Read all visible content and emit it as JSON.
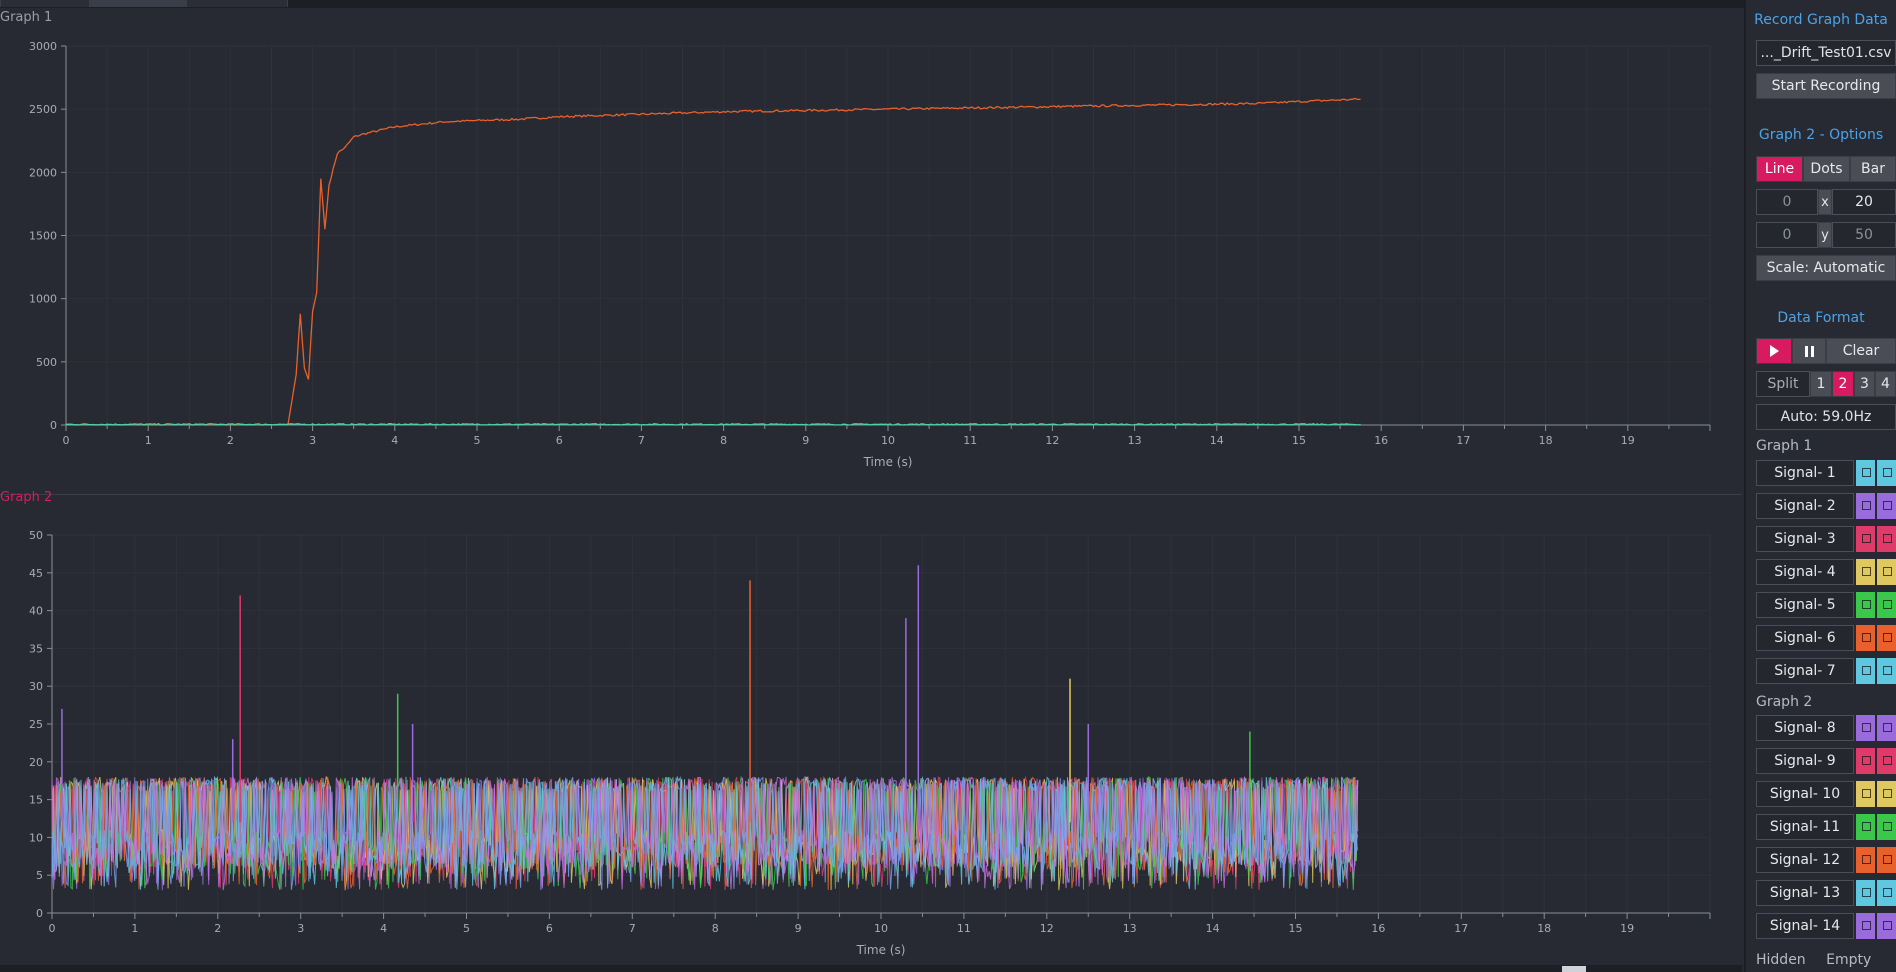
{
  "graph1": {
    "label": "Graph 1",
    "xlabel": "Time (s)",
    "ylabel": ""
  },
  "graph2": {
    "label": "Graph 2",
    "xlabel": "Time (s)",
    "ylabel": ""
  },
  "chart_data": [
    {
      "type": "line",
      "title": "Graph 1",
      "xlabel": "Time (s)",
      "ylabel": "",
      "xlim": [
        0,
        20
      ],
      "ylim": [
        0,
        3000
      ],
      "xticks": [
        "0",
        "1",
        "2",
        "3",
        "4",
        "5",
        "6",
        "7",
        "8",
        "9",
        "10",
        "11",
        "12",
        "13",
        "14",
        "15",
        "16",
        "17",
        "18",
        "19"
      ],
      "yticks": [
        "0",
        "500",
        "1000",
        "1500",
        "2000",
        "2500",
        "3000"
      ],
      "grid": true,
      "series": [
        {
          "color": "#e8612c",
          "x": [
            0,
            2.7,
            2.75,
            2.8,
            2.85,
            2.9,
            2.95,
            3.0,
            3.05,
            3.1,
            3.15,
            3.2,
            3.3,
            3.4,
            3.5,
            3.6,
            3.8,
            4.0,
            4.3,
            4.6,
            5.0,
            5.5,
            6.0,
            7.0,
            8.0,
            9.0,
            10.0,
            11.0,
            12.0,
            13.0,
            14.0,
            14.5,
            15.0,
            15.75
          ],
          "y": [
            0,
            0,
            200,
            400,
            880,
            450,
            360,
            900,
            1050,
            1950,
            1550,
            1900,
            2150,
            2200,
            2280,
            2300,
            2330,
            2360,
            2380,
            2400,
            2410,
            2420,
            2440,
            2460,
            2480,
            2490,
            2500,
            2510,
            2520,
            2530,
            2540,
            2545,
            2560,
            2580
          ]
        },
        {
          "color": "#4fd1a8",
          "x": [
            0,
            15.75
          ],
          "y": [
            5,
            5
          ]
        }
      ]
    },
    {
      "type": "line",
      "title": "Graph 2",
      "xlabel": "Time (s)",
      "ylabel": "",
      "xlim": [
        0,
        20
      ],
      "ylim": [
        0,
        50
      ],
      "xticks": [
        "0",
        "1",
        "2",
        "3",
        "4",
        "5",
        "6",
        "7",
        "8",
        "9",
        "10",
        "11",
        "12",
        "13",
        "14",
        "15",
        "16",
        "17",
        "18",
        "19"
      ],
      "yticks": [
        "0",
        "5",
        "10",
        "15",
        "20",
        "25",
        "30",
        "35",
        "40",
        "45",
        "50"
      ],
      "grid": true,
      "data_end_x": 15.75,
      "value_band": [
        5,
        18
      ],
      "series_colors": [
        "#9a6bdb",
        "#e03a6a",
        "#e0c860",
        "#3ac84a",
        "#e8612c",
        "#5ec8e0",
        "#c86be0",
        "#7aa0f0"
      ],
      "spikes": [
        {
          "x": 0.12,
          "y": 27,
          "color": "#9a6bdb"
        },
        {
          "x": 2.27,
          "y": 42,
          "color": "#e03a6a"
        },
        {
          "x": 2.18,
          "y": 23,
          "color": "#9a6bdb"
        },
        {
          "x": 4.17,
          "y": 29,
          "color": "#3ac84a"
        },
        {
          "x": 4.35,
          "y": 25,
          "color": "#9a6bdb"
        },
        {
          "x": 8.42,
          "y": 44,
          "color": "#e8612c"
        },
        {
          "x": 10.3,
          "y": 39,
          "color": "#9a6bdb"
        },
        {
          "x": 10.45,
          "y": 46,
          "color": "#9a6bdb"
        },
        {
          "x": 12.28,
          "y": 31,
          "color": "#e0c860"
        },
        {
          "x": 12.5,
          "y": 25,
          "color": "#9a6bdb"
        },
        {
          "x": 14.45,
          "y": 24,
          "color": "#3ac84a"
        }
      ]
    }
  ],
  "panel": {
    "record_title": "Record Graph Data",
    "filename": "..._Drift_Test01.csv",
    "start_recording": "Start Recording",
    "options_title": "Graph 2 -  Options",
    "mode_line": "Line",
    "mode_dots": "Dots",
    "mode_bar": "Bar",
    "x_min": "0",
    "x_label": "x",
    "x_max": "20",
    "y_min": "0",
    "y_label": "y",
    "y_max": "50",
    "scale": "Scale: Automatic",
    "data_format_title": "Data Format",
    "clear": "Clear",
    "split": "Split",
    "split_options": [
      "1",
      "2",
      "3",
      "4"
    ],
    "auto_rate": "Auto: 59.0Hz",
    "graph1_label": "Graph 1",
    "graph2_label": "Graph 2",
    "hidden_label": "Hidden",
    "empty_label": "Empty",
    "accent": "#d81b60",
    "title_color": "#4aa3e8"
  },
  "signals_graph1": [
    {
      "label": "Signal- 1",
      "color": "#5ec8e0"
    },
    {
      "label": "Signal- 2",
      "color": "#9a6bdb"
    },
    {
      "label": "Signal- 3",
      "color": "#e03a6a"
    },
    {
      "label": "Signal- 4",
      "color": "#e0c860"
    },
    {
      "label": "Signal- 5",
      "color": "#3ac84a"
    },
    {
      "label": "Signal- 6",
      "color": "#e8612c"
    },
    {
      "label": "Signal- 7",
      "color": "#5ec8e0"
    }
  ],
  "signals_graph2": [
    {
      "label": "Signal- 8",
      "color": "#9a6bdb"
    },
    {
      "label": "Signal- 9",
      "color": "#e03a6a"
    },
    {
      "label": "Signal- 10",
      "color": "#e0c860"
    },
    {
      "label": "Signal- 11",
      "color": "#3ac84a"
    },
    {
      "label": "Signal- 12",
      "color": "#e8612c"
    },
    {
      "label": "Signal- 13",
      "color": "#5ec8e0"
    },
    {
      "label": "Signal- 14",
      "color": "#9a6bdb"
    }
  ]
}
